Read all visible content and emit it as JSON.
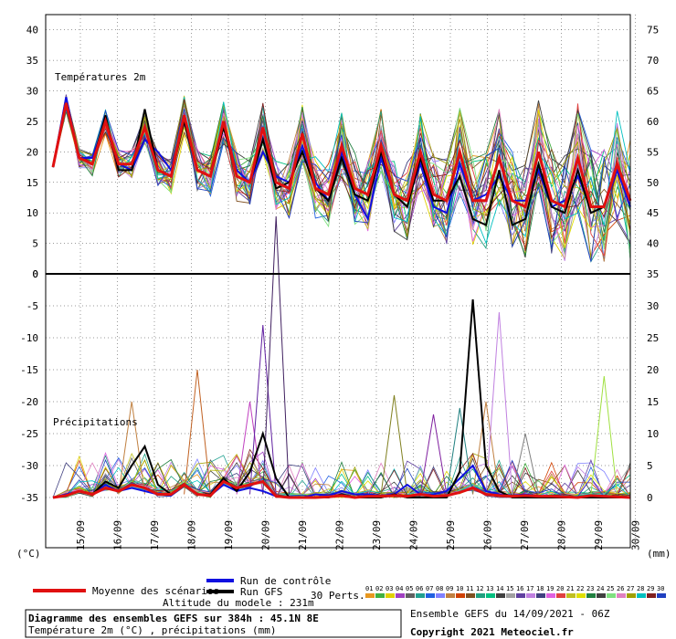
{
  "chart_data": {
    "type": "line",
    "x_dates": [
      "15/09",
      "16/09",
      "17/09",
      "18/09",
      "19/09",
      "20/09",
      "21/09",
      "22/09",
      "23/09",
      "24/09",
      "25/09",
      "26/09",
      "27/09",
      "28/09",
      "29/09",
      "30/09"
    ],
    "temperature": {
      "label": "Températures 2m",
      "left_ticks": [
        "40",
        "35",
        "30",
        "25",
        "20",
        "15",
        "10",
        "5",
        "0"
      ],
      "right_ticks": [
        "75",
        "70",
        "65",
        "60",
        "55",
        "50",
        "45",
        "40"
      ],
      "ylim": [
        0,
        42.5
      ],
      "mean": [
        17.5,
        28,
        19,
        18,
        25,
        18,
        18,
        24,
        17,
        16,
        26,
        17,
        16,
        25,
        16,
        15,
        24,
        15,
        14,
        23,
        14,
        13,
        21,
        14,
        13,
        21,
        13,
        12,
        20,
        13,
        12,
        20,
        12,
        12,
        19,
        12,
        11,
        20,
        12,
        11,
        19,
        11,
        11,
        18,
        12
      ],
      "control": [
        17.5,
        29,
        19,
        19,
        25,
        18,
        17,
        22,
        20,
        17,
        25,
        17,
        16,
        24,
        17,
        15,
        20,
        16,
        15,
        21,
        15,
        12,
        20,
        13,
        9,
        19,
        13,
        12,
        18,
        11,
        10,
        18,
        12,
        13,
        16,
        12,
        12,
        17,
        11,
        12,
        16,
        11,
        11,
        17,
        11
      ],
      "gfs": [
        17.5,
        28,
        19,
        18,
        26,
        17,
        17,
        27,
        17,
        16,
        25,
        17,
        16,
        24,
        16,
        15,
        22,
        14,
        15,
        20,
        14,
        12,
        19,
        13,
        12,
        20,
        13,
        11,
        19,
        12,
        12,
        16,
        9,
        8,
        17,
        8,
        9,
        18,
        11,
        10,
        17,
        10,
        11,
        18,
        12
      ],
      "member_colors": [
        "#e89820",
        "#40b040",
        "#e0d000",
        "#a040c0",
        "#606060",
        "#20a090",
        "#2060e0",
        "#8080ff",
        "#c08040",
        "#d04000",
        "#805020",
        "#20a080",
        "#00c080",
        "#404040",
        "#a0a0a0",
        "#6040a0",
        "#c080e0",
        "#404080",
        "#e060e0",
        "#e04040",
        "#c0c020",
        "#e0e000",
        "#208040",
        "#404040",
        "#80e080",
        "#e080c0",
        "#a0a000",
        "#00c0c0",
        "#802020",
        "#2040c0"
      ]
    },
    "precipitation": {
      "label": "Précipitations",
      "left_ticks": [
        "0",
        "-5",
        "-10",
        "-15",
        "-20",
        "-25",
        "-30",
        "-35"
      ],
      "right_ticks": [
        "35",
        "30",
        "25",
        "20",
        "15",
        "10",
        "5",
        "0"
      ],
      "ylim": [
        0,
        35
      ],
      "mean": [
        0,
        0.3,
        1,
        0.5,
        1.5,
        1,
        2,
        1.5,
        0.5,
        0.5,
        2,
        0.5,
        0.3,
        2.5,
        1.5,
        2,
        2.5,
        0.2,
        0,
        0,
        0,
        0.1,
        0.3,
        0,
        0.2,
        0.2,
        0.3,
        0.2,
        0.5,
        0.2,
        0.3,
        0.8,
        1.5,
        0.5,
        0.3,
        0.2,
        0.3,
        0.2,
        0.2,
        0.1,
        0,
        0.3,
        0.2,
        0.1,
        0
      ],
      "control": [
        0,
        0.5,
        1,
        0.5,
        2,
        1,
        1.5,
        1,
        0.5,
        0.3,
        2,
        0.5,
        0.3,
        2,
        1,
        1.5,
        1,
        0.2,
        0,
        0,
        0.5,
        0.3,
        1,
        0.5,
        0.5,
        0.3,
        0.5,
        2,
        0.5,
        0.5,
        1,
        3,
        5,
        1,
        0.5,
        0.3,
        0.5,
        0.2,
        0.2,
        0,
        0,
        0.3,
        0.2,
        0,
        0
      ],
      "gfs": [
        0,
        0.3,
        1,
        0.5,
        2.5,
        1.5,
        5,
        8,
        2,
        0.5,
        2,
        0.5,
        0.5,
        3,
        1,
        4,
        10,
        3,
        0,
        0,
        0,
        0,
        0.5,
        0,
        0,
        0,
        0.5,
        0,
        0,
        0,
        0,
        4,
        31,
        5,
        1,
        0,
        0,
        0,
        0,
        0,
        0,
        0,
        0,
        0,
        0
      ],
      "spikes": [
        [
          6,
          15,
          "#c08040"
        ],
        [
          11,
          20,
          "#c06020"
        ],
        [
          15,
          15,
          "#c040c0"
        ],
        [
          16,
          27,
          "#6020a0"
        ],
        [
          17,
          44,
          "#402060"
        ],
        [
          26,
          16,
          "#808020"
        ],
        [
          29,
          13,
          "#8020a0"
        ],
        [
          31,
          14,
          "#208080"
        ],
        [
          33,
          15,
          "#c08040"
        ],
        [
          34,
          29,
          "#c080e0"
        ],
        [
          36,
          10,
          "#808080"
        ],
        [
          42,
          19,
          "#a0e040"
        ]
      ]
    },
    "x_axis_left_label": "(°C)",
    "x_axis_right_label": "(mm)"
  },
  "legend": {
    "mean_label": "Moyenne des scénarios",
    "control_label": "Run de contrôle",
    "gfs_label": "Run GFS",
    "perts_label": "30 Perts.",
    "pert_numbers": [
      "01",
      "02",
      "03",
      "04",
      "05",
      "06",
      "07",
      "08",
      "09",
      "10",
      "11",
      "12",
      "13",
      "14",
      "15",
      "16",
      "17",
      "18",
      "19",
      "20",
      "21",
      "22",
      "23",
      "24",
      "25",
      "26",
      "27",
      "28",
      "29",
      "30"
    ],
    "altitude": "Altitude du modele : 231m",
    "mean_color": "#e01010",
    "control_color": "#1010e0",
    "gfs_color": "#000000"
  },
  "footer": {
    "title": "Diagramme des ensembles GEFS sur 384h : 45.1N 8E",
    "subtitle": "Température 2m (°C) , précipitations (mm)",
    "run": "Ensemble GEFS du 14/09/2021 - 06Z",
    "copyright": "Copyright 2021 Meteociel.fr"
  }
}
